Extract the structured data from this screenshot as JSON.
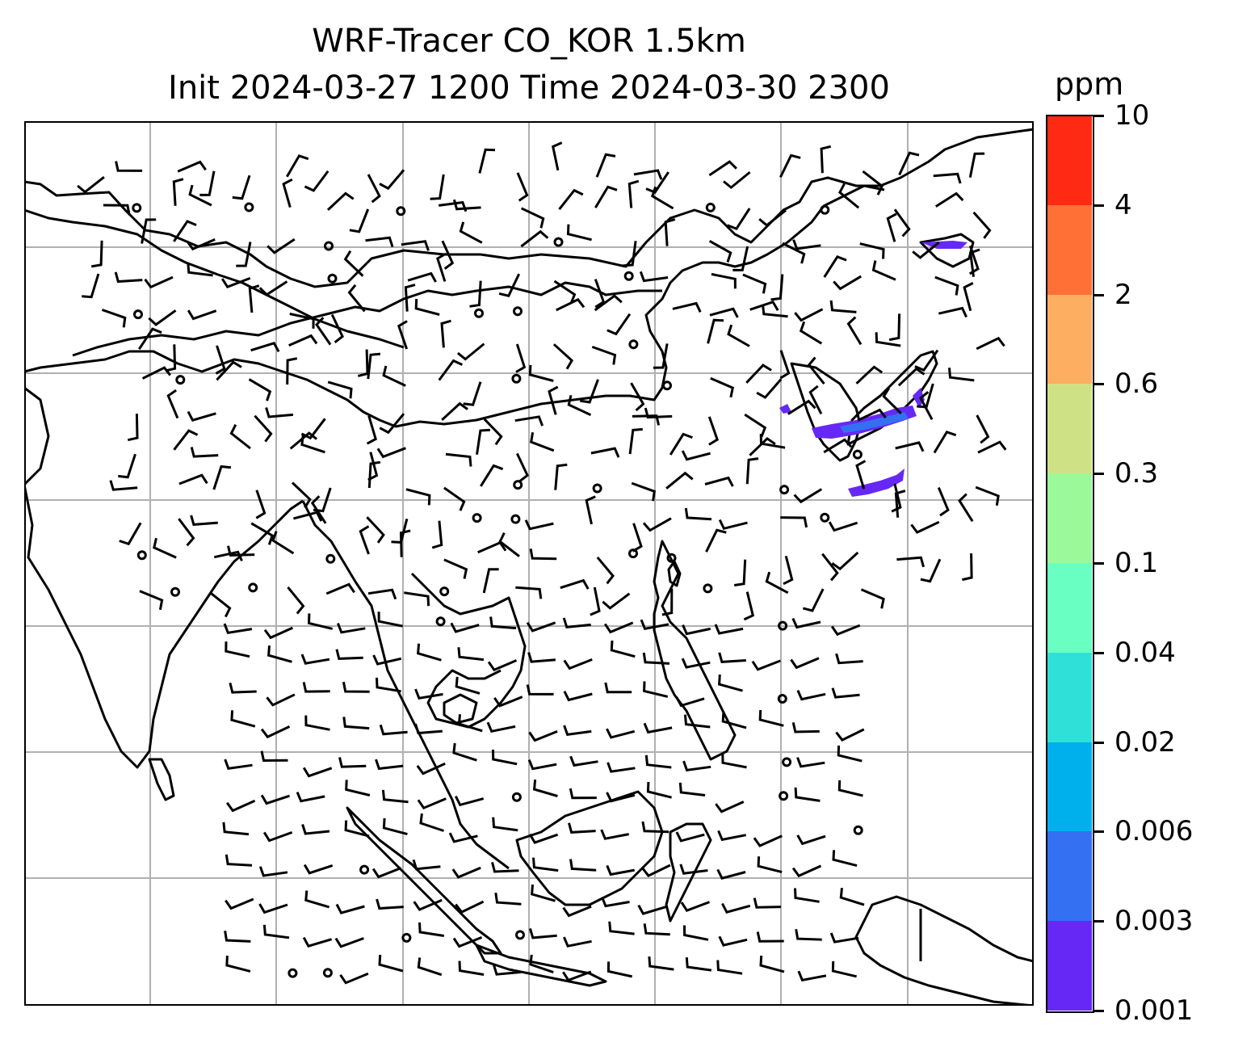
{
  "title": {
    "line1": "WRF-Tracer CO_KOR 1.5km",
    "line2": "Init 2024-03-27 1200 Time 2024-03-30 2300"
  },
  "colorbar": {
    "unit": "ppm",
    "levels": [
      "10",
      "4",
      "2",
      "0.6",
      "0.3",
      "0.1",
      "0.04",
      "0.02",
      "0.006",
      "0.003",
      "0.001"
    ],
    "colors": [
      "#ff2a14",
      "#ff7036",
      "#fdae60",
      "#cfe185",
      "#9cf99a",
      "#6affc2",
      "#2fe0d8",
      "#00b0ed",
      "#3470f2",
      "#6628f5"
    ]
  },
  "map": {
    "grid": "on",
    "wind_field": "wind barbs",
    "tracer_colors": [
      "#6628f5",
      "#3470f2"
    ]
  }
}
